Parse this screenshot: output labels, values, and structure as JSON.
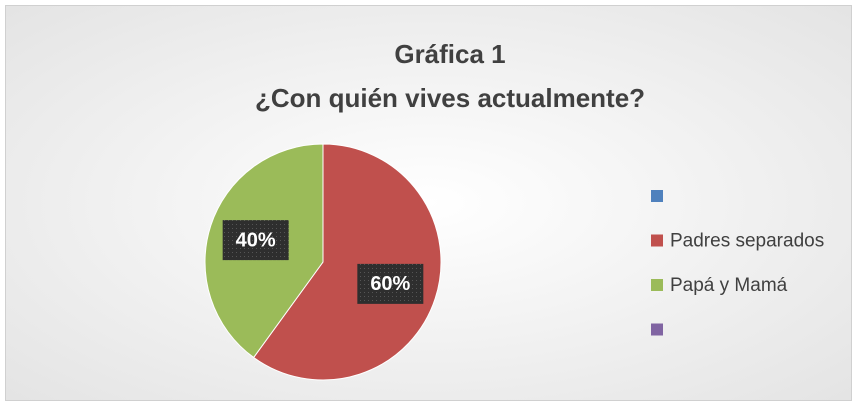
{
  "chart_data": {
    "type": "pie",
    "title": "Gráfica 1",
    "subtitle": "¿Con quién vives actualmente?",
    "categories": [
      null,
      "Padres separados",
      "Papá y Mamá",
      null
    ],
    "values": [
      0,
      60,
      40,
      0
    ],
    "value_labels": [
      null,
      "60%",
      "40%",
      null
    ],
    "colors": [
      "#4f81bd",
      "#c0504d",
      "#9bbb59",
      "#8064a2"
    ],
    "legend": "right"
  }
}
